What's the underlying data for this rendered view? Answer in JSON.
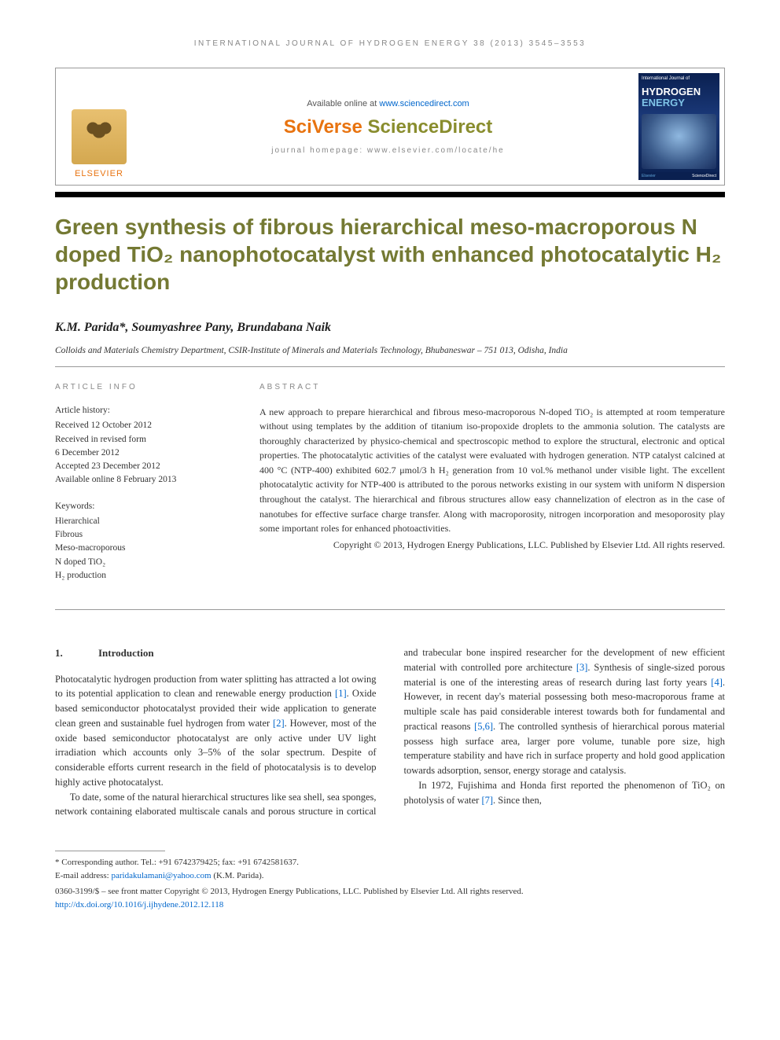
{
  "runningHeader": "INTERNATIONAL JOURNAL OF HYDROGEN ENERGY 38 (2013) 3545–3553",
  "masthead": {
    "elsevier": "ELSEVIER",
    "available": "Available online at ",
    "availableLink": "www.sciencedirect.com",
    "sciverse1": "SciVerse ",
    "sciverse2": "ScienceDirect",
    "homepage": "journal homepage: www.elsevier.com/locate/he",
    "cover": {
      "top": "International Journal of",
      "t1": "HYDROGEN",
      "t2": "ENERGY",
      "footL": "Elsevier",
      "footR": "ScienceDirect"
    }
  },
  "title": "Green synthesis of fibrous hierarchical meso-macroporous N doped TiO₂ nanophotocatalyst with enhanced photocatalytic H₂ production",
  "authors": "K.M. Parida*, Soumyashree Pany, Brundabana Naik",
  "affiliation": "Colloids and Materials Chemistry Department, CSIR-Institute of Minerals and Materials Technology, Bhubaneswar – 751 013, Odisha, India",
  "info": {
    "headInfo": "ARTICLE INFO",
    "headAbs": "ABSTRACT",
    "histLabel": "Article history:",
    "hist": [
      "Received 12 October 2012",
      "Received in revised form",
      "6 December 2012",
      "Accepted 23 December 2012",
      "Available online 8 February 2013"
    ],
    "kwLabel": "Keywords:",
    "keywords": [
      "Hierarchical",
      "Fibrous",
      "Meso-macroporous",
      "N doped TiO₂",
      "H₂ production"
    ]
  },
  "abstract": "A new approach to prepare hierarchical and fibrous meso-macroporous N-doped TiO₂ is attempted at room temperature without using templates by the addition of titanium iso-propoxide droplets to the ammonia solution. The catalysts are thoroughly characterized by physico-chemical and spectroscopic method to explore the structural, electronic and optical properties. The photocatalytic activities of the catalyst were evaluated with hydrogen generation. NTP catalyst calcined at 400 °C (NTP-400) exhibited 602.7 μmol/3 h H₂ generation from 10 vol.% methanol under visible light. The excellent photocatalytic activity for NTP-400 is attributed to the porous networks existing in our system with uniform N dispersion throughout the catalyst. The hierarchical and fibrous structures allow easy channelization of electron as in the case of nanotubes for effective surface charge transfer. Along with macroporosity, nitrogen incorporation and mesoporosity play some important roles for enhanced photoactivities.",
  "abstractCopy": "Copyright © 2013, Hydrogen Energy Publications, LLC. Published by Elsevier Ltd. All rights reserved.",
  "section": {
    "num": "1.",
    "title": "Introduction"
  },
  "body": {
    "p1a": "Photocatalytic hydrogen production from water splitting has attracted a lot owing to its potential application to clean and renewable energy production ",
    "c1": "[1]",
    "p1b": ". Oxide based semiconductor photocatalyst provided their wide application to generate clean green and sustainable fuel hydrogen from water ",
    "c2": "[2]",
    "p1c": ". However, most of the oxide based semiconductor photocatalyst are only active under UV light irradiation which accounts only 3–5% of the solar spectrum. Despite of considerable efforts current research in the field of photocatalysis is to develop highly active photocatalyst.",
    "p2a": "To date, some of the natural hierarchical structures like sea shell, sea sponges, network containing elaborated multiscale canals and porous structure in cortical and trabecular bone inspired researcher for the development of new efficient material with controlled pore architecture ",
    "c3": "[3]",
    "p2b": ". Synthesis of single-sized porous material is one of the interesting areas of research during last forty years ",
    "c4": "[4]",
    "p2c": ". However, in recent day's material possessing both meso-macroporous frame at multiple scale has paid considerable interest towards both for fundamental and practical reasons ",
    "c56": "[5,6]",
    "p2d": ". The controlled synthesis of hierarchical porous material possess high surface area, larger pore volume, tunable pore size, high temperature stability and have rich in surface property and hold good application towards adsorption, sensor, energy storage and catalysis.",
    "p3a": "In 1972, Fujishima and Honda first reported the phenomenon of TiO₂ on photolysis of water ",
    "c7": "[7]",
    "p3b": ". Since then,"
  },
  "footnotes": {
    "corr": "* Corresponding author. Tel.: +91 6742379425; fax: +91 6742581637.",
    "emailLabel": "E-mail address: ",
    "email": "paridakulamani@yahoo.com",
    "emailSuffix": " (K.M. Parida).",
    "copyLine": "0360-3199/$ – see front matter Copyright © 2013, Hydrogen Energy Publications, LLC. Published by Elsevier Ltd. All rights reserved.",
    "doi": "http://dx.doi.org/10.1016/j.ijhydene.2012.12.118"
  }
}
